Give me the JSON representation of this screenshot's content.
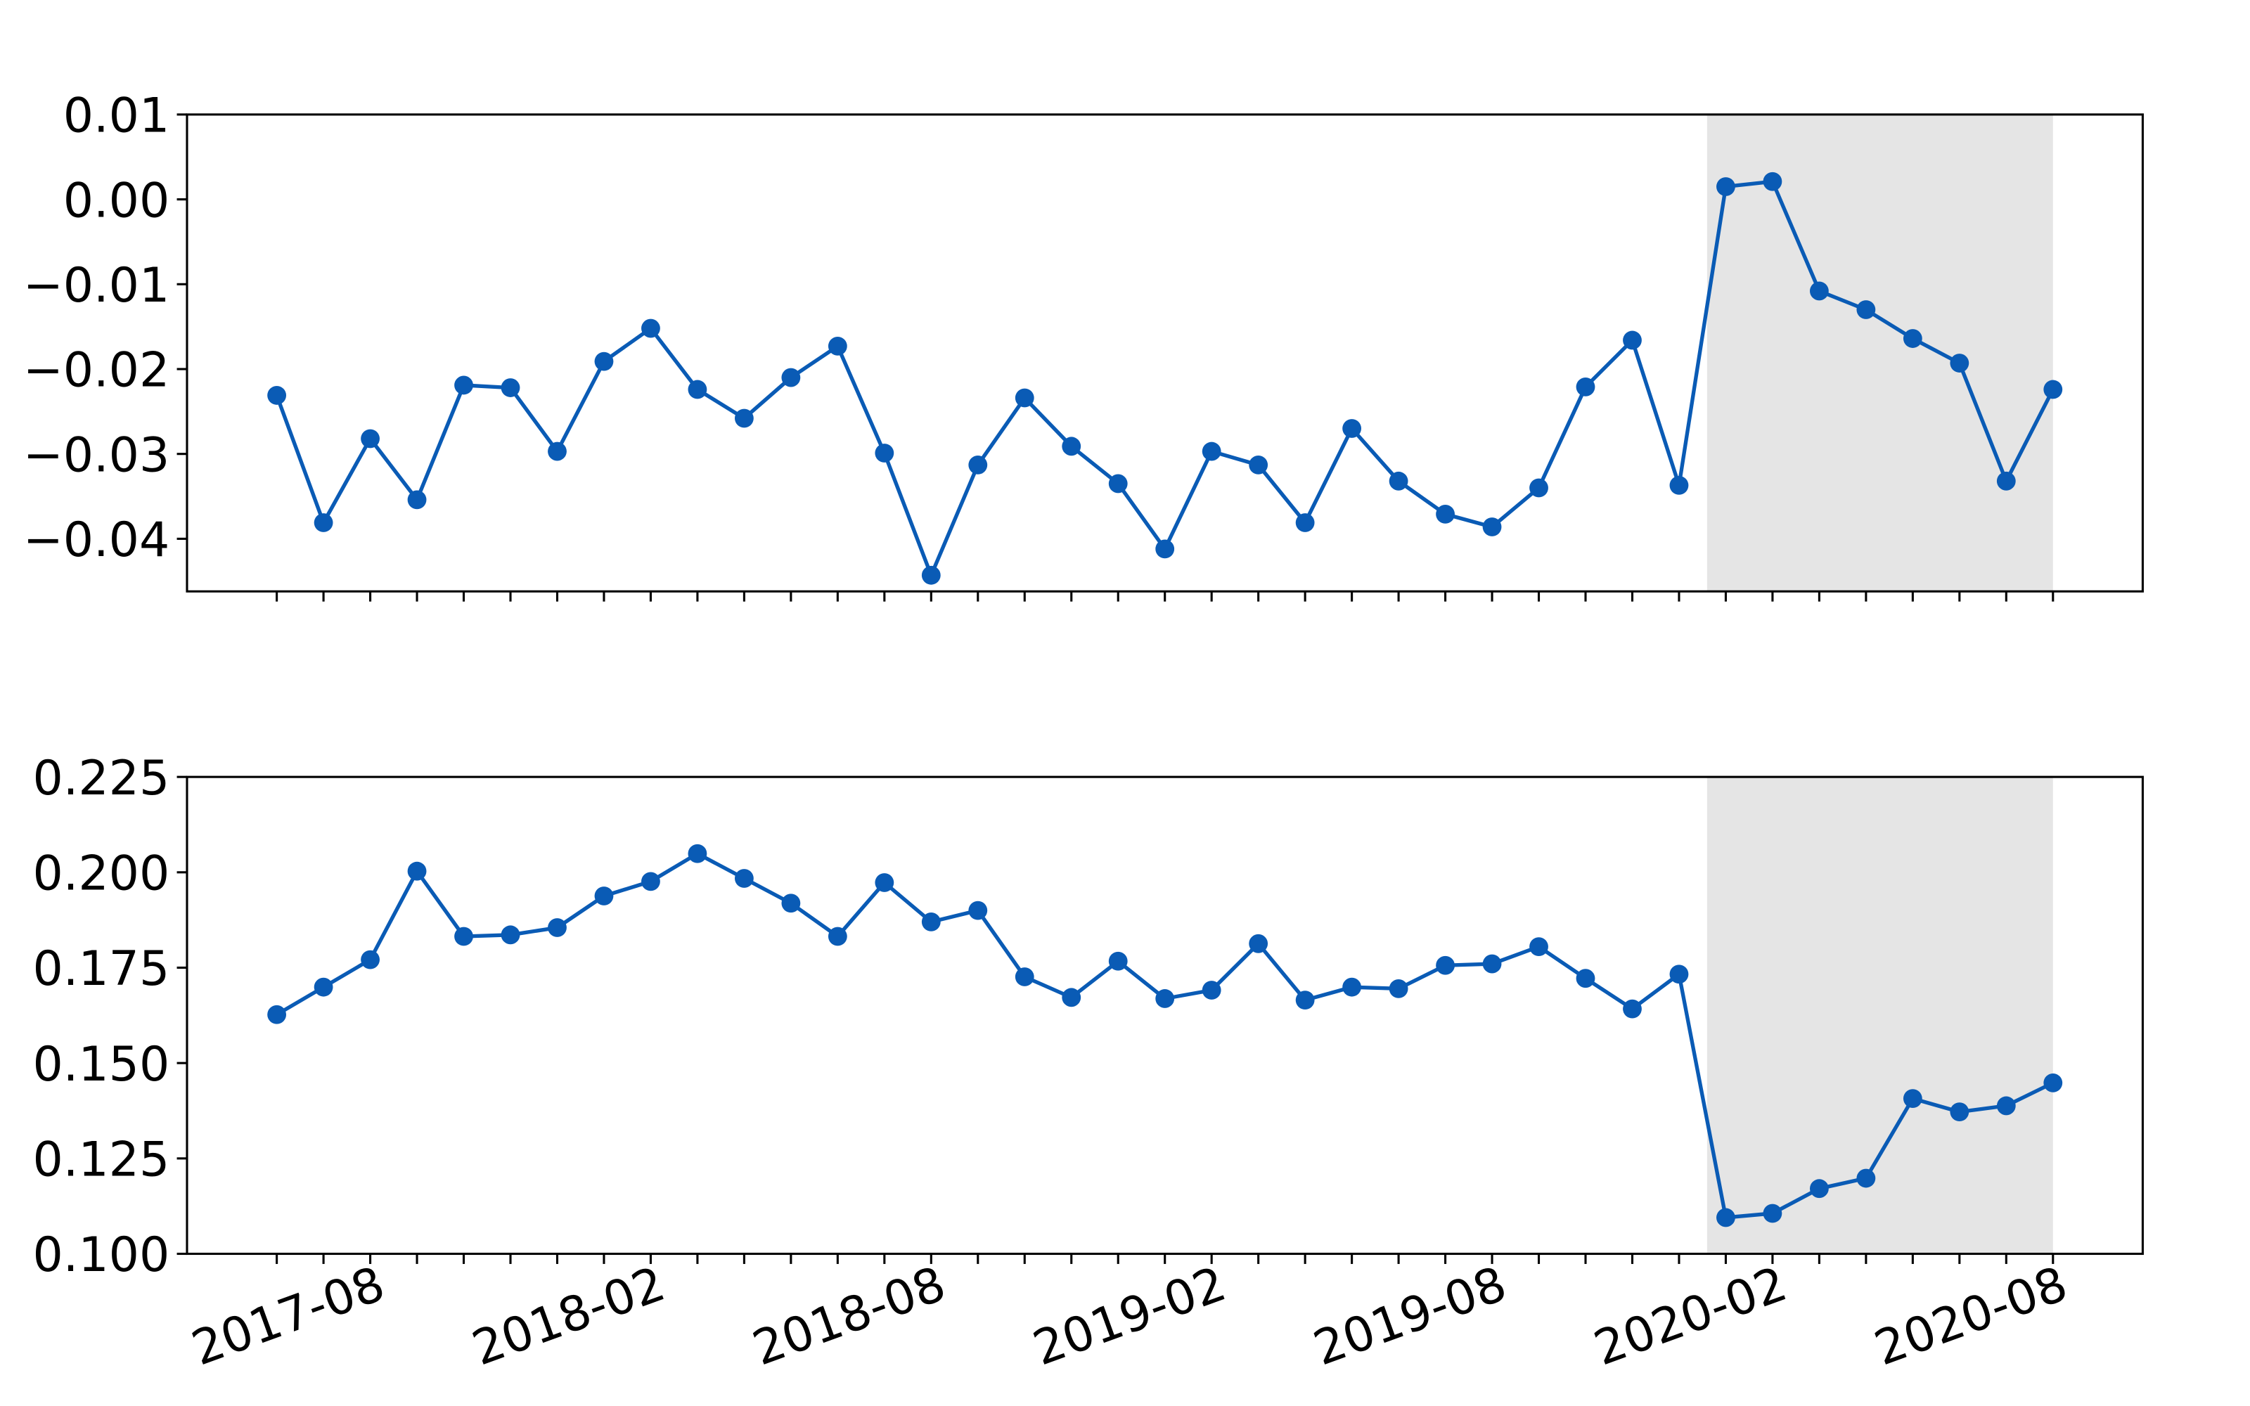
{
  "chart_data": [
    {
      "type": "line",
      "color": "#0a5bb5",
      "categories": [
        null,
        null,
        null,
        null,
        null,
        null,
        null,
        null,
        null,
        null,
        null,
        null,
        null,
        null,
        null,
        null,
        null,
        null,
        null,
        null,
        null,
        null,
        null,
        null,
        null,
        null,
        null,
        null,
        null,
        null,
        null,
        null,
        null,
        null,
        null,
        null,
        null,
        null,
        null
      ],
      "values": [
        -0.0231,
        -0.0381,
        -0.0282,
        -0.0354,
        -0.0219,
        -0.0222,
        -0.0297,
        -0.0191,
        -0.0152,
        -0.0224,
        -0.0258,
        -0.021,
        -0.0173,
        -0.0299,
        -0.0443,
        -0.0313,
        -0.0234,
        -0.0291,
        -0.0335,
        -0.0412,
        -0.0297,
        -0.0313,
        -0.0381,
        -0.027,
        -0.0332,
        -0.0371,
        -0.0386,
        -0.034,
        -0.0221,
        -0.0166,
        -0.0337,
        0.0015,
        0.0021,
        -0.0108,
        -0.013,
        -0.0164,
        -0.0193,
        -0.0332,
        -0.0224
      ],
      "ylim": [
        -0.0462,
        0.01
      ],
      "yticks": [
        {
          "value": -0.04,
          "label": "−0.04"
        },
        {
          "value": -0.03,
          "label": "−0.03"
        },
        {
          "value": -0.02,
          "label": "−0.02"
        },
        {
          "value": -0.01,
          "label": "−0.01"
        },
        {
          "value": 0,
          "label": "0.00"
        },
        0.01
      ],
      "shade": {
        "from": 30.6,
        "to": 38,
        "color": "#e5e5e5"
      }
    },
    {
      "type": "line",
      "color": "#0a5bb5",
      "categories": [
        null,
        null,
        "2017-08",
        null,
        null,
        null,
        null,
        null,
        "2018-02",
        null,
        null,
        null,
        null,
        null,
        "2018-08",
        null,
        null,
        null,
        null,
        null,
        "2019-02",
        null,
        null,
        null,
        null,
        null,
        "2019-08",
        null,
        null,
        null,
        null,
        null,
        "2020-02",
        null,
        null,
        null,
        null,
        null,
        "2020-08"
      ],
      "values": [
        0.1627,
        0.1699,
        0.1771,
        0.2003,
        0.1832,
        0.1836,
        0.1855,
        0.1938,
        0.1976,
        0.2049,
        0.1984,
        0.1919,
        0.1832,
        0.1973,
        0.187,
        0.19,
        0.1726,
        0.1672,
        0.1767,
        0.1669,
        0.1691,
        0.1813,
        0.1665,
        0.1699,
        0.1695,
        0.1756,
        0.176,
        0.1805,
        0.1722,
        0.1642,
        0.1733,
        0.1095,
        0.1106,
        0.1171,
        0.1198,
        0.1407,
        0.1372,
        0.1388,
        0.1448
      ],
      "ylim": [
        0.1,
        0.225
      ],
      "yticks": [
        {
          "value": 0.1,
          "label": "0.100"
        },
        0.125,
        {
          "value": 0.15,
          "label": "0.150"
        },
        0.175,
        {
          "value": 0.2,
          "label": "0.200"
        },
        0.225
      ],
      "shade": {
        "from": 30.6,
        "to": 38,
        "color": "#e5e5e5"
      }
    }
  ]
}
